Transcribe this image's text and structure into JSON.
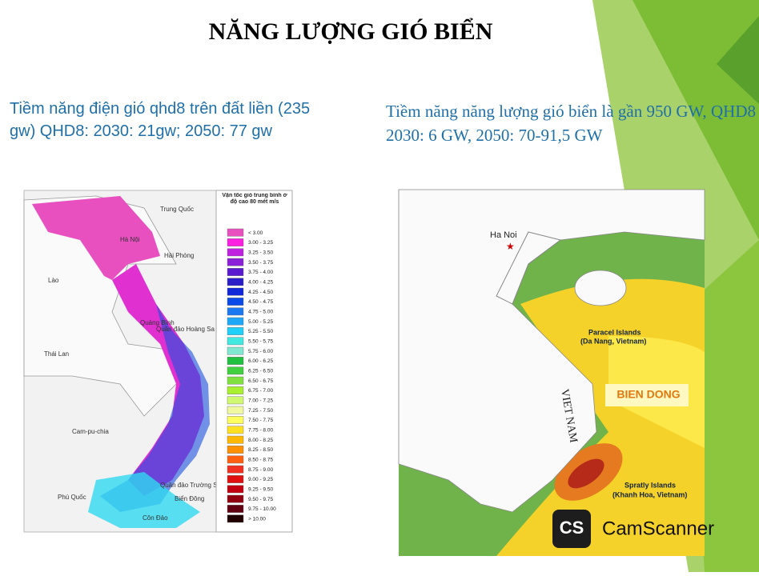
{
  "title": "NĂNG LƯỢNG GIÓ BIỂN",
  "left_text": "Tiềm năng điện gió qhd8 trên đất liền (235 gw) QHD8: 2030: 21gw; 2050: 77 gw",
  "right_text": "Tiềm năng năng lượng gió biển là gần 950 GW, QHD8 2030: 6 GW, 2050: 70-91,5 GW",
  "left_map": {
    "labels": [
      "Trung Quốc",
      "Hà Nội",
      "Hải Phòng",
      "Lào",
      "Quảng Bình",
      "Quần đảo Hoàng Sa",
      "Thái Lan",
      "Cam-pu-chia",
      "Quần đảo Trường Sa",
      "Phú Quốc",
      "Biển Đông",
      "Côn Đảo"
    ],
    "legend": {
      "title": "Vận tốc gió trung bình ở độ cao 80 mét m/s",
      "items": [
        {
          "label": "< 3.00",
          "color": "#e84fbf"
        },
        {
          "label": "3.00 - 3.25",
          "color": "#ff1fe0"
        },
        {
          "label": "3.25 - 3.50",
          "color": "#c020e0"
        },
        {
          "label": "3.50 - 3.75",
          "color": "#8a1fd8"
        },
        {
          "label": "3.75 - 4.00",
          "color": "#5a1ad0"
        },
        {
          "label": "4.00 - 4.25",
          "color": "#2a1ec8"
        },
        {
          "label": "4.25 - 4.50",
          "color": "#1028d8"
        },
        {
          "label": "4.50 - 4.75",
          "color": "#0a4ae8"
        },
        {
          "label": "4.75 - 5.00",
          "color": "#1a78f0"
        },
        {
          "label": "5.00 - 5.25",
          "color": "#20a8f8"
        },
        {
          "label": "5.25 - 5.50",
          "color": "#20d0f8"
        },
        {
          "label": "5.50 - 5.75",
          "color": "#40e8e0"
        },
        {
          "label": "5.75 - 6.00",
          "color": "#80e8d0"
        },
        {
          "label": "6.00 - 6.25",
          "color": "#20c040"
        },
        {
          "label": "6.25 - 6.50",
          "color": "#40d040"
        },
        {
          "label": "6.50 - 6.75",
          "color": "#80e040"
        },
        {
          "label": "6.75 - 7.00",
          "color": "#a8f030"
        },
        {
          "label": "7.00 - 7.25",
          "color": "#d0f870"
        },
        {
          "label": "7.25 - 7.50",
          "color": "#f0f8a0"
        },
        {
          "label": "7.50 - 7.75",
          "color": "#ffff60"
        },
        {
          "label": "7.75 - 8.00",
          "color": "#ffe020"
        },
        {
          "label": "8.00 - 8.25",
          "color": "#ffb800"
        },
        {
          "label": "8.25 - 8.50",
          "color": "#ff9000"
        },
        {
          "label": "8.50 - 8.75",
          "color": "#ff6010"
        },
        {
          "label": "8.75 - 9.00",
          "color": "#f03020"
        },
        {
          "label": "9.00 - 9.25",
          "color": "#e01010"
        },
        {
          "label": "9.25 - 9.50",
          "color": "#c00010"
        },
        {
          "label": "9.50 - 9.75",
          "color": "#900010"
        },
        {
          "label": "9.75 - 10.00",
          "color": "#600010"
        },
        {
          "label": "> 10.00",
          "color": "#200000"
        }
      ]
    }
  },
  "right_map": {
    "labels": [
      "Ha Noi",
      "Paracel Islands",
      "(Da Nang, Vietnam)",
      "VIET NAM",
      "BIEN DONG",
      "Spratly Islands",
      "(Khanh Hoa, Vietnam)"
    ]
  },
  "watermark": {
    "logo": "CS",
    "text": "CamScanner"
  }
}
